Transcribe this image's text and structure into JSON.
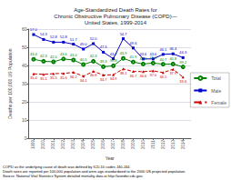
{
  "chart_data": {
    "type": "line",
    "title": "Age-Standardized Death Rates for\nChronic Obstructive Pulmonary Disease (COPD)—\nUnited States, 1999-2014",
    "xlabel": "Year",
    "ylabel": "Deaths per 100,000 US Population",
    "x": [
      1999,
      2000,
      2001,
      2002,
      2003,
      2004,
      2005,
      2006,
      2007,
      2008,
      2009,
      2010,
      2011,
      2012,
      2013,
      2014
    ],
    "series": [
      {
        "name": "Total",
        "color": "#008000",
        "marker": "circle",
        "line_style": "solid",
        "values": [
          43.4,
          42.3,
          42.0,
          43.6,
          43.0,
          40.5,
          42.3,
          39.3,
          39.8,
          43.9,
          41.9,
          40.8,
          41.3,
          40.7,
          40.8,
          39.2
        ],
        "value_labels": [
          "43.4",
          "42.3",
          "42.0",
          "43.6",
          "43.0",
          "40.5",
          "42.3",
          "39.3",
          "39.8",
          "43.9",
          "41.9",
          "40.8",
          "41.3",
          "40.7",
          "40.8",
          "39.2"
        ]
      },
      {
        "name": "Male",
        "color": "#0000cc",
        "marker": "square",
        "line_style": "solid",
        "values": [
          57.0,
          54.3,
          52.8,
          52.8,
          51.7,
          49.0,
          52.0,
          47.3,
          43.7,
          54.7,
          49.6,
          43.6,
          43.6,
          46.1,
          46.4,
          44.3
        ],
        "value_labels": [
          "57.0",
          "54.3",
          "52.8",
          "52.8",
          "51.7",
          "49.0",
          "52.0",
          "47.3",
          "43.7",
          "54.7",
          "49.6",
          "43.6",
          "43.6",
          "46.1",
          "46.4",
          "44.3"
        ]
      },
      {
        "name": "Female",
        "color": "#cc0000",
        "marker": "triangle",
        "line_style": "dashed",
        "values": [
          35.4,
          35.1,
          35.5,
          35.6,
          36.2,
          34.1,
          36.8,
          34.7,
          34.9,
          38.1,
          36.7,
          36.6,
          37.0,
          36.1,
          37.9,
          33.6
        ],
        "value_labels": [
          "35.4",
          "35.1",
          "35.5",
          "35.6",
          "36.2",
          "34.1",
          "36.8",
          "34.7",
          "34.9",
          "38.1",
          "36.7",
          "36.6",
          "37.0",
          "36.1",
          "37.9",
          "33.6"
        ]
      }
    ],
    "xlim": [
      1998.5,
      2014.8
    ],
    "xticks": [
      1999,
      2000,
      2001,
      2002,
      2003,
      2004,
      2005,
      2006,
      2007,
      2008,
      2009,
      2010,
      2011,
      2012,
      2013,
      2014
    ],
    "ylim": [
      0,
      60
    ],
    "yticks": [
      0,
      10,
      20,
      30,
      40,
      50,
      60
    ],
    "grid": true,
    "legend": "right",
    "data_labels": true,
    "annotations": [
      "COPD as the underlying cause of death was defined by ICD-10 codes J40-J44.",
      "Death rates are reported per 100,000 population and were age-standardized to the 2000 US projected population.",
      "Source: National Vital Statistics System detailed mortality data at http://wonder.cdc.gov."
    ]
  }
}
